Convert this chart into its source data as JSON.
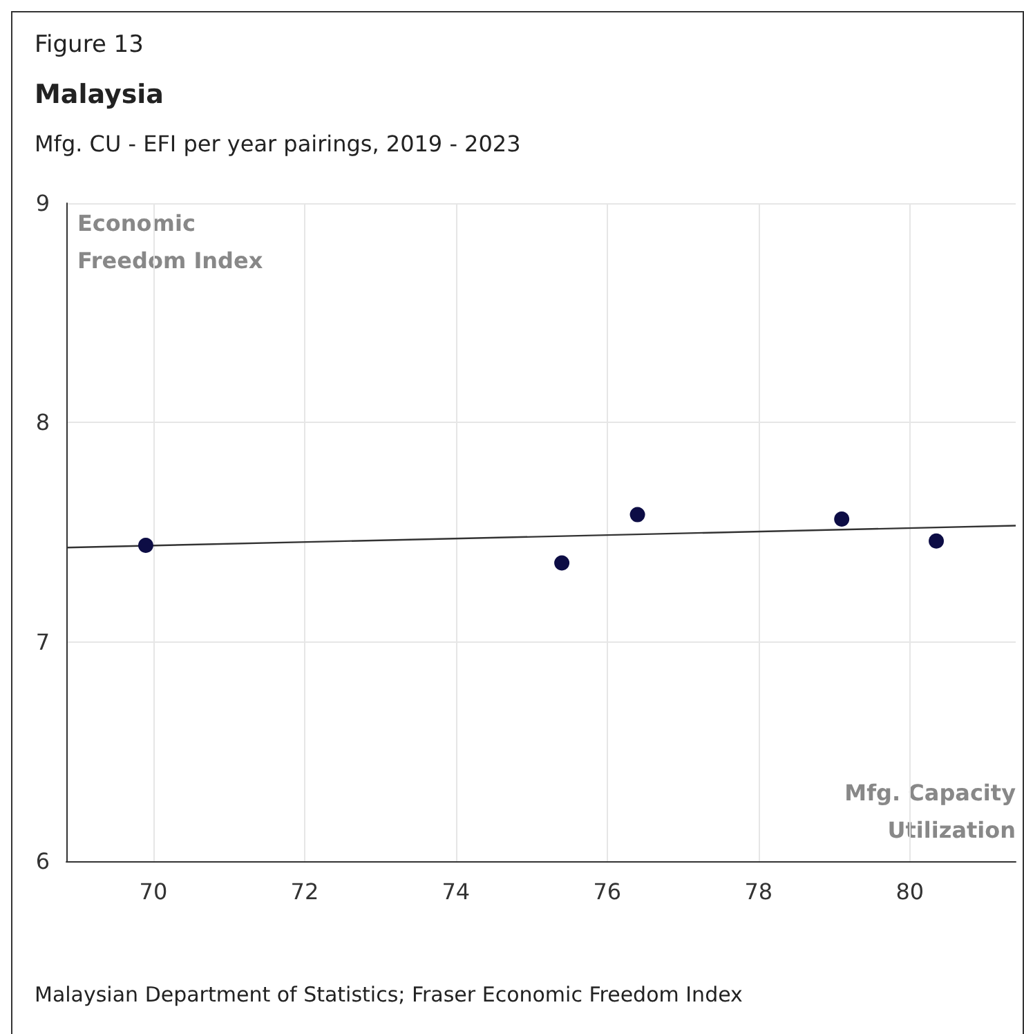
{
  "chart_data": {
    "type": "scatter",
    "title": "Malaysia",
    "subtitle": "Mfg. CU - EFI per year pairings, 2019 - 2023",
    "xlabel": "Mfg. Capacity Utilization",
    "ylabel": "Economic Freedom Index",
    "annotations": [
      "Figure 13",
      "Malaysian Department of Statistics; Fraser Economic Freedom Index"
    ],
    "series": [
      {
        "color": "#0d0d45",
        "marker": "circle",
        "x": [
          69.9,
          75.4,
          76.4,
          79.1,
          80.35
        ],
        "values": [
          7.44,
          7.36,
          7.58,
          7.56,
          7.46
        ]
      },
      {
        "type": "line",
        "color": "#333333",
        "marker": "none",
        "x": [
          68.85,
          81.4
        ],
        "values": [
          7.43,
          7.53
        ]
      }
    ],
    "xlim": [
      68.85,
      81.4
    ],
    "xticks": [
      70,
      72,
      74,
      76,
      78,
      80
    ],
    "ylim": [
      6,
      9
    ],
    "yticks": [
      6,
      7,
      8,
      9
    ],
    "grid": true
  }
}
